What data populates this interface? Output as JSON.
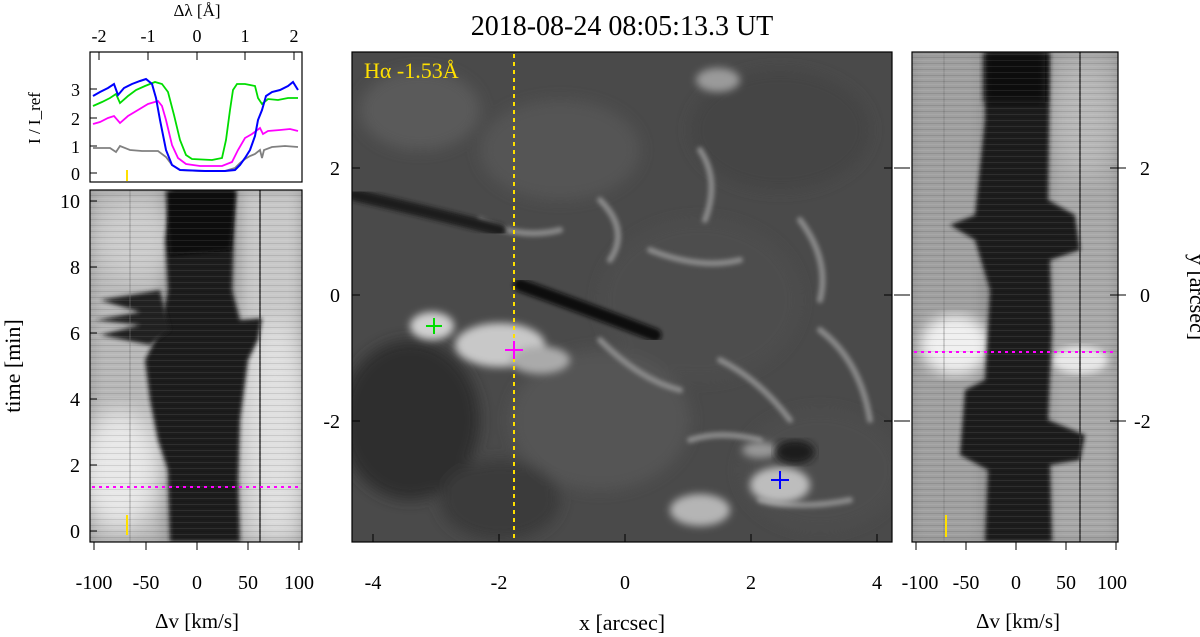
{
  "title": "2018-08-24 08:05:13.3 UT",
  "line_label": "Hα -1.53Å",
  "colors": {
    "blue": "#0000ff",
    "green": "#00dd00",
    "magenta": "#ff00ff",
    "gray": "#808080",
    "yellow": "#ffe000"
  },
  "profile_panel": {
    "top_axis_label": "Δλ [Å]",
    "top_ticks": [
      "-2",
      "-1",
      "0",
      "1",
      "2"
    ],
    "ylabel": "I / I_ref",
    "y_ticks": [
      "0",
      "1",
      "2",
      "3"
    ]
  },
  "time_panel": {
    "ylabel": "time [min]",
    "y_ticks": [
      "0",
      "2",
      "4",
      "6",
      "8",
      "10"
    ],
    "xlabel": "Δv [km/s]",
    "x_ticks": [
      "-100",
      "-50",
      "0",
      "50",
      "100"
    ]
  },
  "image_panel": {
    "xlabel": "x [arcsec]",
    "x_ticks": [
      "-4",
      "-2",
      "0",
      "2",
      "4"
    ],
    "y_ticks": [
      "2",
      "0",
      "-2"
    ]
  },
  "xy_panel": {
    "ylabel": "y [arcsec]",
    "y_ticks": [
      "2",
      "0",
      "-2"
    ],
    "xlabel": "Δv [km/s]",
    "x_ticks": [
      "-100",
      "-50",
      "0",
      "50",
      "100"
    ]
  }
}
